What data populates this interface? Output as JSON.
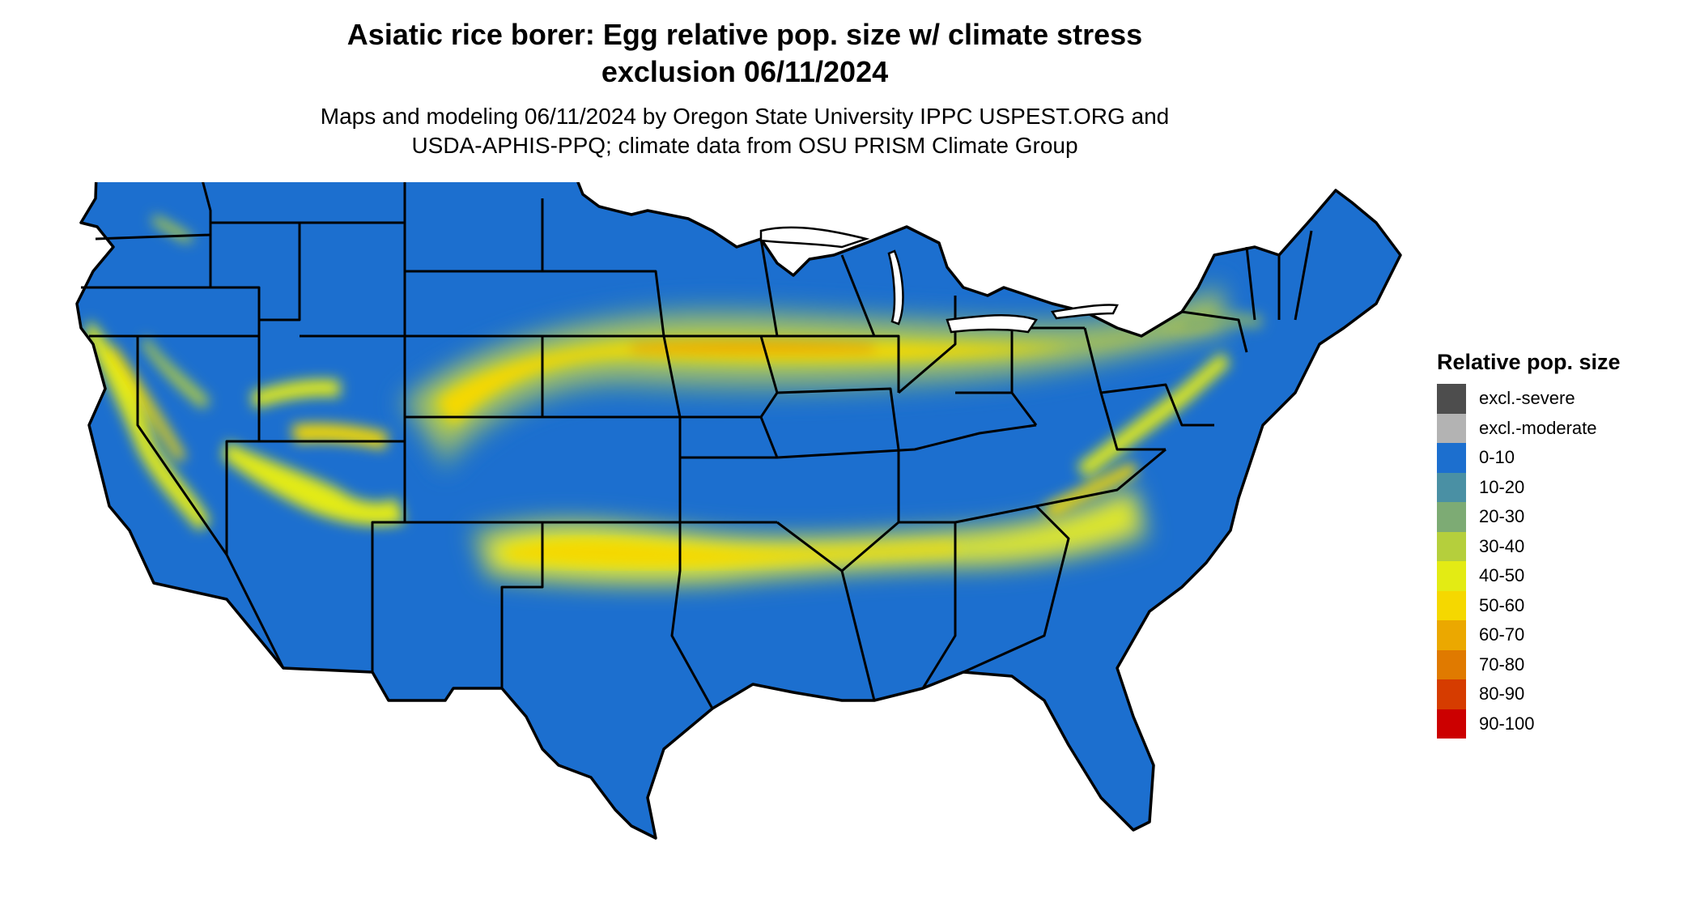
{
  "header": {
    "title_line1": "Asiatic rice borer: Egg relative pop. size w/ climate stress",
    "title_line2": "exclusion 06/11/2024",
    "subtitle_line1": "Maps and modeling 06/11/2024 by Oregon State University IPPC USPEST.ORG and",
    "subtitle_line2": "USDA-APHIS-PPQ; climate data from OSU PRISM Climate Group"
  },
  "legend": {
    "title": "Relative pop. size",
    "items": [
      {
        "label": "excl.-severe",
        "color": "#4d4d4d"
      },
      {
        "label": "excl.-moderate",
        "color": "#b3b3b3"
      },
      {
        "label": "0-10",
        "color": "#1c6fcf"
      },
      {
        "label": "10-20",
        "color": "#4a90a4"
      },
      {
        "label": "20-30",
        "color": "#7dab74"
      },
      {
        "label": "30-40",
        "color": "#b5cf3c"
      },
      {
        "label": "40-50",
        "color": "#e3eb14"
      },
      {
        "label": "50-60",
        "color": "#f5d800"
      },
      {
        "label": "60-70",
        "color": "#eba800"
      },
      {
        "label": "70-80",
        "color": "#e07a00"
      },
      {
        "label": "80-90",
        "color": "#d63c00"
      },
      {
        "label": "90-100",
        "color": "#cc0000"
      }
    ]
  },
  "map": {
    "base_color": "#1c6fcf",
    "border_color": "#000000"
  }
}
